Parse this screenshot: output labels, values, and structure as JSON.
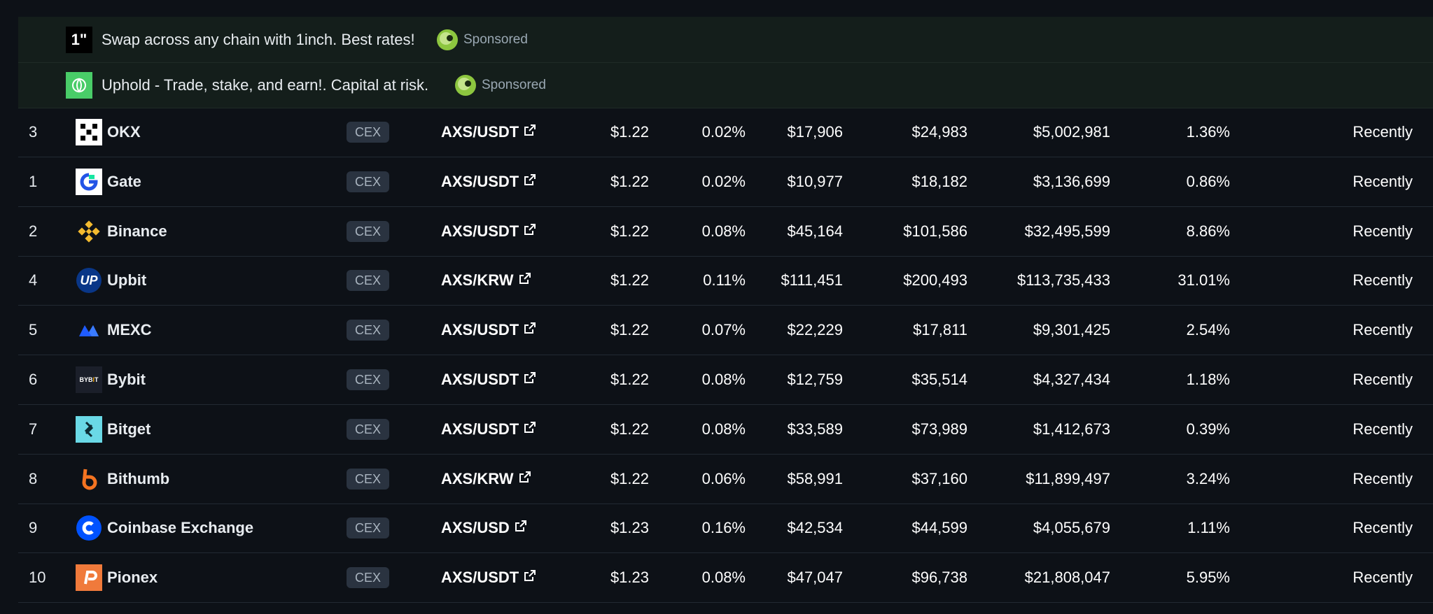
{
  "sponsored": [
    {
      "logo_icon": "1inch-logo-icon",
      "logo_text": "1\"",
      "text": "Swap across any chain with 1inch. Best rates!",
      "badge": "Sponsored"
    },
    {
      "logo_icon": "uphold-logo-icon",
      "logo_text": "",
      "text": "Uphold - Trade, stake, and earn!. Capital at risk.",
      "badge": "Sponsored"
    }
  ],
  "rows": [
    {
      "rank": "3",
      "exchange": "OKX",
      "logo": "okx-logo-icon",
      "type": "CEX",
      "pair": "AXS/USDT",
      "price": "$1.22",
      "spread": "0.02%",
      "depth_plus": "$17,906",
      "depth_minus": "$24,983",
      "volume": "$5,002,981",
      "volume_pct": "1.36%",
      "updated": "Recently"
    },
    {
      "rank": "1",
      "exchange": "Gate",
      "logo": "gate-logo-icon",
      "type": "CEX",
      "pair": "AXS/USDT",
      "price": "$1.22",
      "spread": "0.02%",
      "depth_plus": "$10,977",
      "depth_minus": "$18,182",
      "volume": "$3,136,699",
      "volume_pct": "0.86%",
      "updated": "Recently"
    },
    {
      "rank": "2",
      "exchange": "Binance",
      "logo": "binance-logo-icon",
      "type": "CEX",
      "pair": "AXS/USDT",
      "price": "$1.22",
      "spread": "0.08%",
      "depth_plus": "$45,164",
      "depth_minus": "$101,586",
      "volume": "$32,495,599",
      "volume_pct": "8.86%",
      "updated": "Recently"
    },
    {
      "rank": "4",
      "exchange": "Upbit",
      "logo": "upbit-logo-icon",
      "type": "CEX",
      "pair": "AXS/KRW",
      "price": "$1.22",
      "spread": "0.11%",
      "depth_plus": "$111,451",
      "depth_minus": "$200,493",
      "volume": "$113,735,433",
      "volume_pct": "31.01%",
      "updated": "Recently"
    },
    {
      "rank": "5",
      "exchange": "MEXC",
      "logo": "mexc-logo-icon",
      "type": "CEX",
      "pair": "AXS/USDT",
      "price": "$1.22",
      "spread": "0.07%",
      "depth_plus": "$22,229",
      "depth_minus": "$17,811",
      "volume": "$9,301,425",
      "volume_pct": "2.54%",
      "updated": "Recently"
    },
    {
      "rank": "6",
      "exchange": "Bybit",
      "logo": "bybit-logo-icon",
      "type": "CEX",
      "pair": "AXS/USDT",
      "price": "$1.22",
      "spread": "0.08%",
      "depth_plus": "$12,759",
      "depth_minus": "$35,514",
      "volume": "$4,327,434",
      "volume_pct": "1.18%",
      "updated": "Recently"
    },
    {
      "rank": "7",
      "exchange": "Bitget",
      "logo": "bitget-logo-icon",
      "type": "CEX",
      "pair": "AXS/USDT",
      "price": "$1.22",
      "spread": "0.08%",
      "depth_plus": "$33,589",
      "depth_minus": "$73,989",
      "volume": "$1,412,673",
      "volume_pct": "0.39%",
      "updated": "Recently"
    },
    {
      "rank": "8",
      "exchange": "Bithumb",
      "logo": "bithumb-logo-icon",
      "type": "CEX",
      "pair": "AXS/KRW",
      "price": "$1.22",
      "spread": "0.06%",
      "depth_plus": "$58,991",
      "depth_minus": "$37,160",
      "volume": "$11,899,497",
      "volume_pct": "3.24%",
      "updated": "Recently"
    },
    {
      "rank": "9",
      "exchange": "Coinbase Exchange",
      "logo": "coinbase-logo-icon",
      "type": "CEX",
      "pair": "AXS/USD",
      "price": "$1.23",
      "spread": "0.16%",
      "depth_plus": "$42,534",
      "depth_minus": "$44,599",
      "volume": "$4,055,679",
      "volume_pct": "1.11%",
      "updated": "Recently"
    },
    {
      "rank": "10",
      "exchange": "Pionex",
      "logo": "pionex-logo-icon",
      "type": "CEX",
      "pair": "AXS/USDT",
      "price": "$1.23",
      "spread": "0.08%",
      "depth_plus": "$47,047",
      "depth_minus": "$96,738",
      "volume": "$21,808,047",
      "volume_pct": "5.95%",
      "updated": "Recently"
    }
  ]
}
